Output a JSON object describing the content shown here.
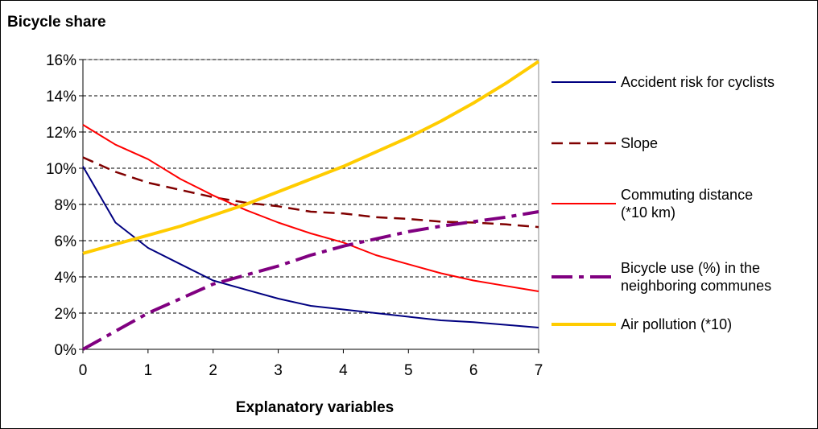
{
  "chart_data": {
    "type": "line",
    "title": "",
    "ylabel": "Bicycle share",
    "xlabel": "Explanatory variables",
    "xlim": [
      0,
      7
    ],
    "ylim": [
      0,
      16
    ],
    "x_ticks": [
      "0",
      "1",
      "2",
      "3",
      "4",
      "5",
      "6",
      "7"
    ],
    "y_ticks": [
      "0%",
      "2%",
      "4%",
      "6%",
      "8%",
      "10%",
      "12%",
      "14%",
      "16%"
    ],
    "grid": "horizontal dashed",
    "legend_position": "right",
    "x": [
      0,
      0.5,
      1,
      1.5,
      2,
      2.5,
      3,
      3.5,
      4,
      4.5,
      5,
      5.5,
      6,
      6.5,
      7
    ],
    "series": [
      {
        "name": "Accident risk for cyclists",
        "color": "#000080",
        "style": "solid",
        "values": [
          10.1,
          7.0,
          5.6,
          4.7,
          3.8,
          3.3,
          2.8,
          2.4,
          2.2,
          2.0,
          1.8,
          1.6,
          1.5,
          1.35,
          1.2
        ]
      },
      {
        "name": "Slope",
        "color": "#800000",
        "style": "dashed",
        "values": [
          10.6,
          9.8,
          9.2,
          8.8,
          8.4,
          8.1,
          7.9,
          7.6,
          7.5,
          7.3,
          7.2,
          7.05,
          7.0,
          6.9,
          6.75
        ]
      },
      {
        "name": "Commuting distance (*10 km)",
        "label_lines": [
          "Commuting distance",
          "(*10 km)"
        ],
        "color": "#ff0000",
        "style": "solid",
        "values": [
          12.4,
          11.3,
          10.5,
          9.4,
          8.5,
          7.7,
          7.0,
          6.4,
          5.9,
          5.2,
          4.7,
          4.2,
          3.8,
          3.5,
          3.2
        ]
      },
      {
        "name": "Bicycle use (%) in the neighboring communes",
        "label_lines": [
          "Bicycle use (%) in the",
          "neighboring communes"
        ],
        "color": "#800080",
        "style": "dashdot",
        "values": [
          0.0,
          1.0,
          2.0,
          2.8,
          3.6,
          4.1,
          4.6,
          5.2,
          5.7,
          6.1,
          6.5,
          6.8,
          7.05,
          7.3,
          7.6
        ]
      },
      {
        "name": "Air pollution (*10)",
        "color": "#ffcc00",
        "style": "solid",
        "values": [
          5.3,
          5.8,
          6.3,
          6.8,
          7.4,
          8.0,
          8.7,
          9.4,
          10.1,
          10.9,
          11.7,
          12.6,
          13.6,
          14.7,
          15.9
        ]
      }
    ]
  }
}
